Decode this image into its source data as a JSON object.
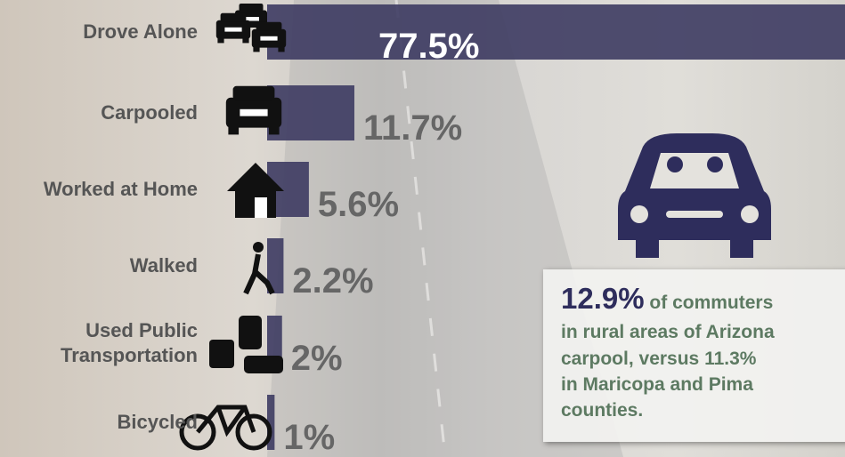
{
  "chart_data": {
    "type": "hbar",
    "categories": [
      "Drove Alone",
      "Carpooled",
      "Worked at Home",
      "Walked",
      "Used Public Transportation",
      "Bicycled"
    ],
    "values": [
      77.5,
      11.7,
      5.6,
      2.2,
      2,
      1
    ],
    "value_labels": [
      "77.5%",
      "11.7%",
      "5.6%",
      "2.2%",
      "2%",
      "1%"
    ],
    "color": "#3d3b62",
    "xlim": [
      0,
      77.5
    ],
    "annotation": {
      "highlight": "12.9%",
      "lines": [
        "of commuters",
        "in rural areas of Arizona",
        "carpool, versus 11.3%",
        "in Maricopa and Pima",
        "counties."
      ]
    }
  }
}
